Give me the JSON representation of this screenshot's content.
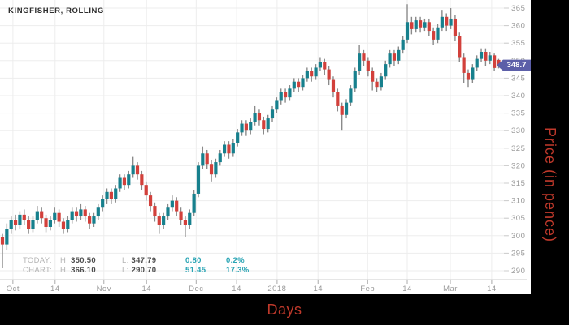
{
  "title": "KINGFISHER, ROLLING",
  "xlabel": "Days",
  "ylabel": "Price (in pence)",
  "last_price_badge": "348.7",
  "stats": {
    "rows": [
      {
        "label": "TODAY:",
        "h_label": "H:",
        "high": "350.50",
        "l_label": "L:",
        "low": "347.79",
        "change": "0.80",
        "pct": "0.2%"
      },
      {
        "label": "CHART:",
        "h_label": "H:",
        "high": "366.10",
        "l_label": "L:",
        "low": "290.70",
        "change": "51.45",
        "pct": "17.3%"
      }
    ]
  },
  "colors": {
    "up": "#17808d",
    "down": "#d2403b",
    "wick": "#8a8a8a",
    "grid": "#ededed",
    "axis_line": "#cccccc",
    "tick": "#aaaaaa",
    "axis_text": "#9a9a9a",
    "badge": "#5c5fa8",
    "accent_red": "#c0392b",
    "stat_teal": "#28a4b4"
  },
  "chart_data": {
    "type": "candlestick",
    "title": "KINGFISHER, ROLLING",
    "xlabel": "Days",
    "ylabel": "Price (in pence)",
    "legend": "none",
    "grid": true,
    "ylim": [
      287.5,
      367.3
    ],
    "y_ticks": [
      290,
      295,
      300,
      305,
      310,
      315,
      320,
      325,
      330,
      335,
      340,
      345,
      350,
      355,
      360,
      365
    ],
    "x_ticks": [
      {
        "label": "Oct",
        "i": 2.4
      },
      {
        "label": "14",
        "i": 12.1
      },
      {
        "label": "Nov",
        "i": 23.3
      },
      {
        "label": "14",
        "i": 33.1
      },
      {
        "label": "Dec",
        "i": 44.5
      },
      {
        "label": "14",
        "i": 53.8
      },
      {
        "label": "2018",
        "i": 63.1
      },
      {
        "label": "14",
        "i": 72.5
      },
      {
        "label": "Feb",
        "i": 83.9
      },
      {
        "label": "14",
        "i": 93.0
      },
      {
        "label": "Mar",
        "i": 102.9
      },
      {
        "label": "14",
        "i": 112.4
      }
    ],
    "last_price": 348.7,
    "today": {
      "high": 350.5,
      "low": 347.79,
      "change": 0.8,
      "change_pct": "0.2%"
    },
    "chart_range": {
      "high": 366.1,
      "low": 290.7,
      "change": 51.45,
      "change_pct": "17.3%"
    },
    "candles_format": [
      "open",
      "high",
      "low",
      "close"
    ],
    "candles": [
      [
        299.5,
        300.5,
        290.7,
        297.5
      ],
      [
        297.5,
        303.5,
        296,
        302
      ],
      [
        302,
        305.5,
        300.5,
        304.5
      ],
      [
        304.5,
        306,
        301.5,
        303
      ],
      [
        303,
        307,
        302,
        306
      ],
      [
        306,
        307.5,
        303,
        304.5
      ],
      [
        304.5,
        305.5,
        300.5,
        302
      ],
      [
        302,
        305.5,
        301,
        304.5
      ],
      [
        304.5,
        308.5,
        303.5,
        307
      ],
      [
        307,
        308,
        303.5,
        305
      ],
      [
        305,
        306,
        301,
        302.5
      ],
      [
        302.5,
        305.5,
        301.5,
        304.5
      ],
      [
        304.5,
        308,
        303.5,
        306.5
      ],
      [
        306.5,
        307.5,
        302.5,
        304
      ],
      [
        304,
        305,
        300.5,
        302
      ],
      [
        302,
        305.5,
        301,
        304.5
      ],
      [
        304.5,
        308,
        303.5,
        307
      ],
      [
        307,
        308,
        304,
        305.5
      ],
      [
        305.5,
        309,
        304.5,
        307.5
      ],
      [
        307.5,
        308.5,
        304,
        305.5
      ],
      [
        305.5,
        306.5,
        302,
        303.5
      ],
      [
        303.5,
        306.5,
        302.5,
        305.5
      ],
      [
        305.5,
        309,
        304.5,
        308
      ],
      [
        308,
        311.5,
        307,
        310.5
      ],
      [
        310.5,
        313.5,
        309,
        312.5
      ],
      [
        312.5,
        313.5,
        309,
        310.5
      ],
      [
        310.5,
        314.5,
        309.5,
        313.5
      ],
      [
        313.5,
        317.5,
        312.5,
        316.5
      ],
      [
        316.5,
        317.5,
        313,
        314.5
      ],
      [
        314.5,
        318.5,
        313.5,
        317.5
      ],
      [
        317.5,
        322.5,
        316.5,
        320
      ],
      [
        320,
        321,
        316,
        317.5
      ],
      [
        317.5,
        318.5,
        313,
        314.5
      ],
      [
        314.5,
        315.5,
        310,
        311.5
      ],
      [
        311.5,
        312.5,
        307,
        308.5
      ],
      [
        308.5,
        309.5,
        304,
        305.5
      ],
      [
        305.5,
        306.5,
        300.5,
        303
      ],
      [
        303,
        306.5,
        302,
        305.5
      ],
      [
        305.5,
        309,
        304.5,
        308
      ],
      [
        308,
        311.5,
        307,
        310
      ],
      [
        310,
        311,
        305.5,
        307
      ],
      [
        307,
        308,
        303,
        304.5
      ],
      [
        304.5,
        305.5,
        299.5,
        303
      ],
      [
        303,
        307.5,
        302,
        306.5
      ],
      [
        306.5,
        313,
        305.5,
        312
      ],
      [
        312,
        321,
        311,
        320
      ],
      [
        320,
        325.5,
        319,
        323.5
      ],
      [
        323.5,
        324.5,
        319,
        320.5
      ],
      [
        320.5,
        321.5,
        315.5,
        317.5
      ],
      [
        317.5,
        322,
        316.5,
        321
      ],
      [
        321,
        324.5,
        320,
        323.5
      ],
      [
        323.5,
        327,
        322.5,
        326
      ],
      [
        326,
        327,
        322,
        323.5
      ],
      [
        323.5,
        327.5,
        322.5,
        326.5
      ],
      [
        326.5,
        330.5,
        325.5,
        329.5
      ],
      [
        329.5,
        333,
        328.5,
        332
      ],
      [
        332,
        333,
        328.5,
        330
      ],
      [
        330,
        333.5,
        329,
        332.5
      ],
      [
        332.5,
        337,
        331.5,
        335
      ],
      [
        335,
        336,
        331.5,
        333
      ],
      [
        333,
        334,
        329,
        330.5
      ],
      [
        330.5,
        334.5,
        329.5,
        333.5
      ],
      [
        333.5,
        337,
        332.5,
        336
      ],
      [
        336,
        339.5,
        335,
        338.5
      ],
      [
        338.5,
        342,
        337.5,
        341
      ],
      [
        341,
        342,
        338,
        339.5
      ],
      [
        339.5,
        343,
        338.5,
        342
      ],
      [
        342,
        345,
        341,
        344
      ],
      [
        344,
        345,
        341,
        342.5
      ],
      [
        342.5,
        346,
        341.5,
        345
      ],
      [
        345,
        348,
        344,
        347
      ],
      [
        347,
        348,
        344,
        345.5
      ],
      [
        345.5,
        349,
        344.5,
        348
      ],
      [
        348,
        351,
        347,
        349.5
      ],
      [
        349.5,
        350.5,
        346,
        347.5
      ],
      [
        347.5,
        348.5,
        343,
        344.5
      ],
      [
        344.5,
        345.5,
        339.5,
        341
      ],
      [
        341,
        342,
        335.5,
        337
      ],
      [
        337,
        338,
        330,
        334.5
      ],
      [
        334.5,
        339,
        333.5,
        338
      ],
      [
        338,
        343,
        337,
        342
      ],
      [
        342,
        348,
        341,
        347
      ],
      [
        347,
        354.5,
        346,
        352
      ],
      [
        352,
        353,
        348.5,
        350
      ],
      [
        350,
        351,
        345.5,
        347
      ],
      [
        347,
        348,
        341.5,
        344
      ],
      [
        344,
        345,
        341,
        342.5
      ],
      [
        342.5,
        346.5,
        341.5,
        345.5
      ],
      [
        345.5,
        350,
        344.5,
        349
      ],
      [
        349,
        353,
        348,
        352
      ],
      [
        352,
        353,
        348.5,
        350
      ],
      [
        350,
        354,
        349,
        353
      ],
      [
        353,
        357,
        352,
        356
      ],
      [
        356,
        366.1,
        355,
        361
      ],
      [
        361,
        362.5,
        357.5,
        359
      ],
      [
        359,
        362.5,
        358,
        361.5
      ],
      [
        361.5,
        362.5,
        358,
        359.5
      ],
      [
        359.5,
        362,
        358.5,
        361
      ],
      [
        361,
        362,
        357,
        358.5
      ],
      [
        358.5,
        359.5,
        354.5,
        356
      ],
      [
        356,
        360.5,
        355,
        359.5
      ],
      [
        359.5,
        364.5,
        358.5,
        362.5
      ],
      [
        362.5,
        363.5,
        358.5,
        360
      ],
      [
        360,
        365,
        359,
        362
      ],
      [
        362,
        363,
        355.5,
        357
      ],
      [
        357,
        358,
        349.5,
        351
      ],
      [
        351,
        352,
        343.5,
        346.5
      ],
      [
        346.5,
        347.5,
        342.5,
        344.5
      ],
      [
        344.5,
        349,
        343.5,
        348
      ],
      [
        348,
        351.5,
        347,
        350.5
      ],
      [
        350.5,
        353.5,
        349.5,
        352.5
      ],
      [
        352.5,
        353.5,
        348.5,
        350
      ],
      [
        350,
        352.5,
        349,
        351.5
      ],
      [
        351.5,
        352,
        347,
        347.9
      ],
      [
        350.2,
        350.5,
        347.79,
        348.7
      ]
    ]
  }
}
